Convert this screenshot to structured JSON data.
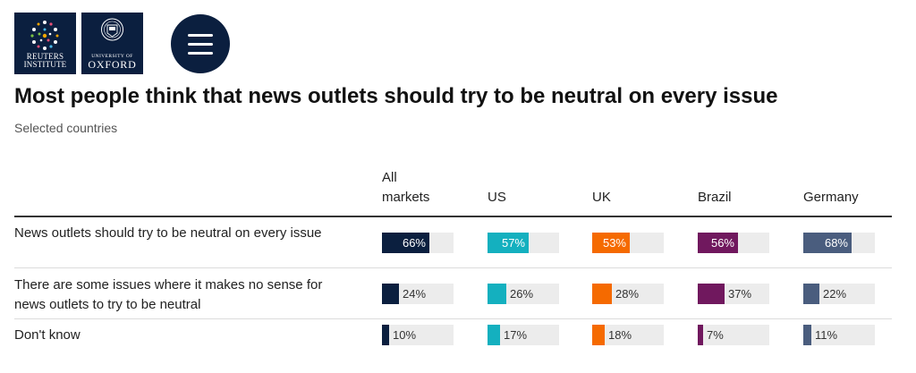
{
  "header": {
    "logos": [
      {
        "name": "reuters-institute-logo",
        "text": "REUTERS INSTITUTE"
      },
      {
        "name": "oxford-logo",
        "small_text": "UNIVERSITY OF",
        "text": "OXFORD"
      }
    ],
    "menu_icon": "hamburger-menu-icon"
  },
  "colors": {
    "All markets": "#0b1f3f",
    "US": "#14b0bf",
    "UK": "#f56a00",
    "Brazil": "#70185e",
    "Germany": "#4a5d7e",
    "track": "#ececec"
  },
  "chart_data": {
    "type": "table",
    "title": "Most people think that news outlets should try to be neutral on every issue",
    "subtitle": "Selected countries",
    "columns": [
      "All markets",
      "US",
      "UK",
      "Brazil",
      "Germany"
    ],
    "rows": [
      {
        "label": "News outlets should try to be neutral on every issue",
        "values": [
          66,
          57,
          53,
          56,
          68
        ]
      },
      {
        "label": "There are some issues where it makes no sense for news outlets to try to be neutral",
        "values": [
          24,
          26,
          28,
          37,
          22
        ]
      },
      {
        "label": "Don't know",
        "values": [
          10,
          17,
          18,
          7,
          11
        ]
      }
    ],
    "unit": "%",
    "max": 100
  }
}
